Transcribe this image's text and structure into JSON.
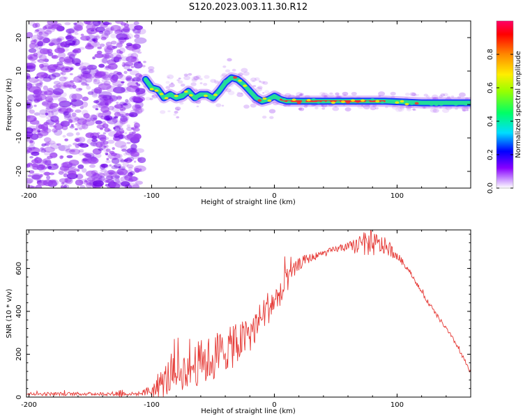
{
  "title": "S120.2023.003.11.30.R12",
  "colors": {
    "snr_line": "#e53935",
    "ridge_low": "#1a3cff",
    "ridge_mid": "#22dd99",
    "ridge_high": "#ff2a2a",
    "noise": "#9a3cf0",
    "noise_dark": "#6a00e8"
  },
  "chart_data": [
    {
      "type": "heatmap",
      "title": "",
      "xlabel": "Height of straight line (km)",
      "ylabel": "Frequency (Hz)",
      "xlim": [
        -202,
        160
      ],
      "ylim": [
        -25,
        25
      ],
      "x_ticks": [
        -200,
        -100,
        0,
        100
      ],
      "y_ticks": [
        20,
        10,
        0,
        -10,
        -20
      ],
      "grid": false,
      "ridge": {
        "x": [
          -105,
          -100,
          -95,
          -90,
          -85,
          -80,
          -75,
          -70,
          -65,
          -60,
          -55,
          -50,
          -45,
          -40,
          -35,
          -30,
          -25,
          -20,
          -15,
          -10,
          -5,
          0,
          5,
          10,
          30,
          60,
          90,
          120,
          150,
          160
        ],
        "y": [
          7.5,
          5,
          4.5,
          2,
          3,
          2,
          2.5,
          4,
          2,
          3,
          3,
          2,
          4,
          6.5,
          8,
          7.5,
          6,
          4,
          2,
          1,
          1.5,
          2.5,
          1.5,
          1,
          1,
          1,
          1,
          0.5,
          0.5,
          0.5
        ]
      },
      "noise_region": {
        "x_range": [
          -202,
          -108
        ],
        "freq_range": [
          -25,
          25
        ]
      },
      "colorbar": {
        "label": "Normalized spectral amplitude",
        "range": [
          0.0,
          1.0
        ],
        "ticks": [
          "0.0",
          "0.2",
          "0.4",
          "0.6",
          "0.8"
        ],
        "colormap": [
          "#ffffff",
          "#8800ff",
          "#0000ff",
          "#00ddff",
          "#00ff66",
          "#99ff00",
          "#ffee00",
          "#ff8800",
          "#ff0000",
          "#ff0066"
        ]
      }
    },
    {
      "type": "line",
      "title": "",
      "xlabel": "Height of straight line (km)",
      "ylabel": "SNR (10 * v/v)",
      "xlim": [
        -202,
        160
      ],
      "ylim": [
        0,
        780
      ],
      "x_ticks": [
        -200,
        -100,
        0,
        100
      ],
      "y_ticks": [
        0,
        200,
        400,
        600
      ],
      "grid": false,
      "series": [
        {
          "values_envelope": {
            "x": [
              -202,
              -190,
              -170,
              -150,
              -130,
              -125,
              -122,
              -110,
              -100,
              -95,
              -90,
              -85,
              -80,
              -75,
              -70,
              -65,
              -60,
              -55,
              -50,
              -45,
              -40,
              -35,
              -30,
              -25,
              -20,
              -15,
              -10,
              -5,
              0,
              5,
              10,
              15,
              20,
              25,
              30,
              40,
              50,
              60,
              70,
              80,
              90,
              100,
              110,
              120,
              130,
              140,
              150,
              160
            ],
            "y": [
              15,
              15,
              15,
              15,
              15,
              20,
              15,
              15,
              30,
              50,
              70,
              100,
              110,
              120,
              130,
              150,
              160,
              170,
              180,
              200,
              220,
              230,
              250,
              270,
              300,
              330,
              380,
              420,
              450,
              470,
              540,
              580,
              620,
              640,
              650,
              670,
              690,
              700,
              710,
              715,
              705,
              660,
              590,
              490,
              400,
              320,
              230,
              110
            ],
            "noise_amp": [
              8,
              8,
              8,
              8,
              8,
              30,
              8,
              8,
              30,
              60,
              80,
              90,
              90,
              90,
              90,
              100,
              110,
              110,
              110,
              120,
              100,
              100,
              100,
              90,
              90,
              80,
              80,
              80,
              70,
              70,
              60,
              40,
              30,
              25,
              20,
              15,
              15,
              20,
              50,
              60,
              40,
              20,
              10,
              10,
              10,
              10,
              10,
              10
            ]
          }
        }
      ]
    }
  ]
}
